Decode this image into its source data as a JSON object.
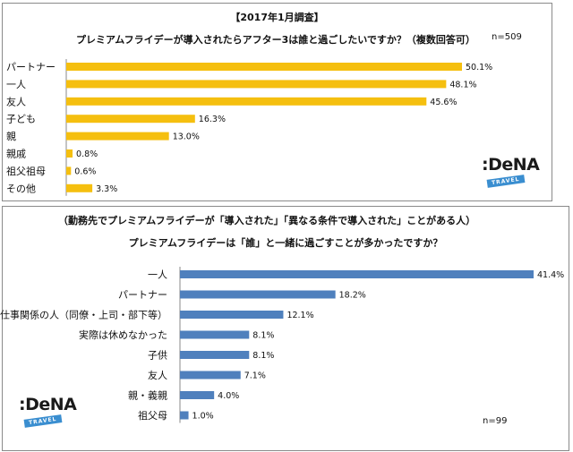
{
  "chart_data": [
    {
      "type": "bar",
      "orientation": "horizontal",
      "title": "【2017年1月調査】",
      "subtitle": "プレミアムフライデーが導入されたらアフター3は誰と過ごしたいですか？（複数回答可）",
      "n_label": "n=509",
      "categories": [
        "パートナー",
        "一人",
        "友人",
        "子ども",
        "親",
        "親戚",
        "祖父祖母",
        "その他"
      ],
      "values": [
        50.1,
        48.1,
        45.6,
        16.3,
        13.0,
        0.8,
        0.6,
        3.3
      ],
      "value_labels": [
        "50.1%",
        "48.1%",
        "45.6%",
        "16.3%",
        "13.0%",
        "0.8%",
        "0.6%",
        "3.3%"
      ],
      "unit": "%",
      "xlim": [
        0,
        50.1
      ],
      "grid": false,
      "bar_color": "#f5bf0f"
    },
    {
      "type": "bar",
      "orientation": "horizontal",
      "title": "（勤務先でプレミアムフライデーが「導入された」「異なる条件で導入された」ことがある人）",
      "subtitle": "プレミアムフライデーは「誰」と一緒に過ごすことが多かったですか？",
      "n_label": "n=99",
      "categories": [
        "一人",
        "パートナー",
        "仕事関係の人（同僚・上司・部下等）",
        "実際は休めなかった",
        "子供",
        "友人",
        "親・義親",
        "祖父母"
      ],
      "values": [
        41.4,
        18.2,
        12.1,
        8.1,
        8.1,
        7.1,
        4.0,
        1.0
      ],
      "value_labels": [
        "41.4%",
        "18.2%",
        "12.1%",
        "8.1%",
        "8.1%",
        "7.1%",
        "4.0%",
        "1.0%"
      ],
      "unit": "%",
      "xlim": [
        0,
        41.4
      ],
      "grid": false,
      "bar_color": "#4f80bd"
    }
  ],
  "logos": {
    "brand_word": "DeNA",
    "brand_tag": "TRAVEL",
    "logo_colors": {
      "word": "#1a1a1a",
      "tag": "#3a8ed0"
    }
  }
}
